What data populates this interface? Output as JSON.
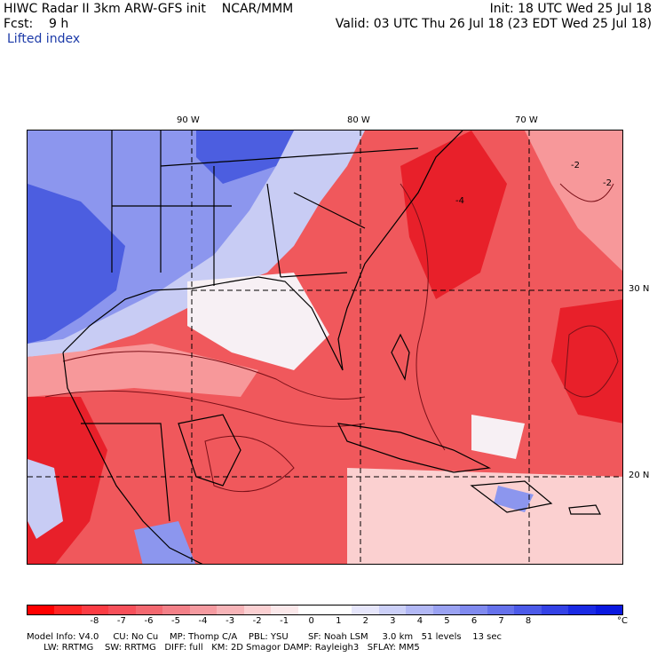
{
  "header": {
    "line1_left": "HIWC Radar II 3km ARW-GFS init    NCAR/MMM",
    "line1_right": "Init: 18 UTC Wed 25 Jul 18",
    "line2_left": "Fcst:    9 h",
    "line2_right": "Valid: 03 UTC Thu 26 Jul 18 (23 EDT Wed 25 Jul 18)",
    "field": "Lifted index"
  },
  "map": {
    "lon_labels": [
      "90 W",
      "80 W",
      "70 W"
    ],
    "lat_labels": [
      "30 N",
      "20 N"
    ],
    "contour_labels": [
      "-2",
      "-2",
      "-4"
    ],
    "colors": {
      "strong_neg": "#e8202a",
      "neg": "#f0585c",
      "mid_neg": "#f7989a",
      "weak_neg": "#fbd0d0",
      "neutral": "#f7f0f4",
      "weak_pos": "#c8ccf4",
      "pos": "#8c96ee",
      "strong_pos": "#4c5ee0",
      "contour": "#7a1018",
      "coast": "#000000"
    }
  },
  "colorbar": {
    "colors": [
      "#ff0000",
      "#ff2424",
      "#fb3c44",
      "#f7505a",
      "#f36870",
      "#f38088",
      "#f59aa0",
      "#f7b4b8",
      "#fbd0d2",
      "#fbe8ea",
      "#ffffff",
      "#ffffff",
      "#e6e6fb",
      "#ccd0f8",
      "#b2b8f5",
      "#9aa2f2",
      "#808aef",
      "#6672ec",
      "#4c5ae9",
      "#3442e6",
      "#1a2ae4",
      "#0a18e0"
    ],
    "ticks": [
      "-8",
      "-7",
      "-6",
      "-5",
      "-4",
      "-3",
      "-2",
      "-1",
      "0",
      "1",
      "2",
      "3",
      "4",
      "5",
      "6",
      "7",
      "8"
    ],
    "unit": "°C"
  },
  "model_info": {
    "line1": "Model Info: V4.0     CU: No Cu    MP: Thomp C/A    PBL: YSU       SF: Noah LSM     3.0 km   51 levels    13 sec",
    "line2": "      LW: RRTMG    SW: RRTMG   DIFF: full   KM: 2D Smagor DAMP: Rayleigh3   SFLAY: MM5"
  }
}
